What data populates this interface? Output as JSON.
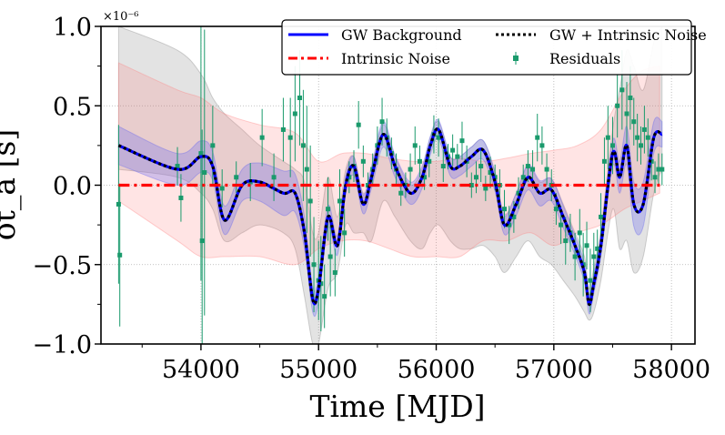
{
  "chart_data": {
    "type": "line",
    "xlabel": "Time [MJD]",
    "ylabel": "δt_a [s]",
    "xlim": [
      53150,
      58200
    ],
    "ylim": [
      -1.0,
      1.0
    ],
    "y_exponent": "×10⁻⁶",
    "x_ticks": [
      54000,
      55000,
      56000,
      57000,
      58000
    ],
    "x_tick_labels": [
      "54000",
      "55000",
      "56000",
      "57000",
      "58000"
    ],
    "y_ticks": [
      -1.0,
      -0.5,
      0.0,
      0.5,
      1.0
    ],
    "y_tick_labels": [
      "−1.0",
      "−0.5",
      "0.0",
      "0.5",
      "1.0"
    ],
    "grid": true,
    "legend_position": "top-right",
    "legend": {
      "gw_background": "GW Background",
      "gw_plus_noise": "GW + Intrinsic Noise",
      "intrinsic_noise": "Intrinsic Noise",
      "residuals": "Residuals"
    },
    "colors": {
      "gw_background": "#0000ff",
      "gw_plus_noise": "#000000",
      "intrinsic_noise": "#ff0000",
      "residuals": "#1a9a6c",
      "band_gw": "#6a6af0",
      "band_total": "#808080",
      "band_noise": "#ff7a7a"
    },
    "gw_curve": {
      "x": [
        53300,
        53800,
        54000,
        54100,
        54200,
        54350,
        54500,
        54700,
        54800,
        54880,
        54950,
        55000,
        55080,
        55160,
        55230,
        55300,
        55380,
        55450,
        55550,
        55650,
        55780,
        55880,
        55950,
        56020,
        56120,
        56200,
        56300,
        56400,
        56500,
        56580,
        56680,
        56780,
        56880,
        56980,
        57080,
        57180,
        57260,
        57300,
        57340,
        57400,
        57500,
        57560,
        57620,
        57680,
        57760,
        57850,
        57920
      ],
      "y": [
        0.25,
        0.1,
        0.18,
        0.12,
        -0.22,
        0.0,
        0.02,
        -0.05,
        -0.05,
        -0.3,
        -0.72,
        -0.65,
        -0.2,
        -0.38,
        0.0,
        0.12,
        -0.12,
        0.05,
        0.32,
        0.12,
        -0.05,
        0.05,
        0.25,
        0.35,
        0.12,
        0.12,
        0.18,
        0.22,
        0.02,
        -0.25,
        -0.12,
        0.05,
        -0.05,
        -0.03,
        -0.2,
        -0.38,
        -0.55,
        -0.75,
        -0.62,
        -0.38,
        0.2,
        0.05,
        0.25,
        -0.12,
        -0.12,
        0.3,
        0.32
      ]
    },
    "gw_band_halfwidth": [
      0.12,
      0.1,
      0.1,
      0.09,
      0.09,
      0.1,
      0.12,
      0.14,
      0.12,
      0.1,
      0.08,
      0.08,
      0.07,
      0.06,
      0.06,
      0.06,
      0.06,
      0.07,
      0.08,
      0.07,
      0.07,
      0.07,
      0.06,
      0.06,
      0.06,
      0.06,
      0.06,
      0.06,
      0.06,
      0.06,
      0.07,
      0.08,
      0.08,
      0.07,
      0.07,
      0.06,
      0.06,
      0.06,
      0.06,
      0.07,
      0.08,
      0.1,
      0.12,
      0.14,
      0.14,
      0.1,
      0.08
    ],
    "total_band": {
      "x": [
        53300,
        53800,
        54000,
        54100,
        54200,
        54350,
        54500,
        54700,
        54800,
        54880,
        54950,
        55000,
        55080,
        55160,
        55230,
        55300,
        55380,
        55450,
        55550,
        55650,
        55780,
        55880,
        55950,
        56020,
        56120,
        56200,
        56300,
        56400,
        56500,
        56580,
        56680,
        56780,
        56880,
        56980,
        57080,
        57180,
        57260,
        57300,
        57340,
        57400,
        57500,
        57560,
        57620,
        57680,
        57760,
        57850,
        57920
      ],
      "upper": [
        1.0,
        0.85,
        0.7,
        0.55,
        0.45,
        0.35,
        0.25,
        0.15,
        0.1,
        0.02,
        -0.3,
        -0.3,
        0.05,
        -0.2,
        0.1,
        0.18,
        -0.05,
        0.1,
        0.38,
        0.18,
        0.0,
        0.1,
        0.3,
        0.4,
        0.18,
        0.18,
        0.24,
        0.28,
        0.08,
        -0.18,
        -0.05,
        0.12,
        0.02,
        0.04,
        -0.12,
        -0.3,
        -0.45,
        -0.65,
        -0.52,
        -0.28,
        0.35,
        0.6,
        0.85,
        0.75,
        0.6,
        0.9,
        1.0
      ],
      "lower": [
        0.1,
        0.05,
        -0.05,
        -0.15,
        -0.35,
        -0.3,
        -0.25,
        -0.3,
        -0.4,
        -0.7,
        -1.0,
        -1.0,
        -0.65,
        -0.55,
        -0.25,
        -0.3,
        -0.3,
        -0.35,
        -0.1,
        -0.2,
        -0.35,
        -0.4,
        -0.3,
        -0.25,
        -0.35,
        -0.4,
        -0.4,
        -0.38,
        -0.45,
        -0.55,
        -0.45,
        -0.35,
        -0.45,
        -0.5,
        -0.6,
        -0.7,
        -0.8,
        -0.85,
        -0.8,
        -0.6,
        -0.15,
        -0.4,
        -0.35,
        -0.55,
        -0.45,
        -0.05,
        0.1
      ]
    },
    "noise_band": {
      "x": [
        53300,
        53800,
        54000,
        54200,
        54500,
        54800,
        55000,
        55200,
        55400,
        55600,
        55800,
        56000,
        56200,
        56400,
        56600,
        56800,
        57000,
        57200,
        57400,
        57600,
        57750,
        57900
      ],
      "upper": [
        0.77,
        0.6,
        0.55,
        0.45,
        0.38,
        0.33,
        0.15,
        0.2,
        0.2,
        0.17,
        0.15,
        0.15,
        0.17,
        0.15,
        0.17,
        0.2,
        0.22,
        0.25,
        0.35,
        0.6,
        0.72,
        0.75
      ],
      "lower": [
        -0.1,
        -0.35,
        -0.45,
        -0.45,
        -0.45,
        -0.5,
        -0.4,
        -0.35,
        -0.35,
        -0.4,
        -0.45,
        -0.45,
        -0.45,
        -0.35,
        -0.35,
        -0.3,
        -0.38,
        -0.3,
        -0.25,
        -0.15,
        -0.1,
        -0.05
      ]
    },
    "intrinsic_noise": {
      "x": [
        53300,
        57920
      ],
      "y": [
        0.0,
        0.0
      ]
    },
    "residuals": {
      "x": [
        53300,
        53310,
        53800,
        53830,
        54000,
        54010,
        54030,
        54100,
        54180,
        54300,
        54420,
        54520,
        54620,
        54700,
        54760,
        54800,
        54840,
        54870,
        54900,
        54930,
        54960,
        55000,
        55020,
        55050,
        55080,
        55100,
        55140,
        55180,
        55220,
        55260,
        55300,
        55340,
        55380,
        55420,
        55460,
        55500,
        55540,
        55580,
        55620,
        55660,
        55700,
        55740,
        55780,
        55820,
        55860,
        55900,
        55940,
        55980,
        56020,
        56060,
        56100,
        56140,
        56180,
        56220,
        56260,
        56300,
        56340,
        56380,
        56420,
        56460,
        56500,
        56540,
        56580,
        56620,
        56660,
        56700,
        56740,
        56780,
        56820,
        56860,
        56900,
        56940,
        56980,
        57020,
        57060,
        57100,
        57140,
        57180,
        57220,
        57250,
        57280,
        57310,
        57340,
        57370,
        57400,
        57430,
        57460,
        57500,
        57540,
        57580,
        57620,
        57650,
        57680,
        57710,
        57740,
        57770,
        57800,
        57830,
        57860,
        57890,
        57920
      ],
      "y": [
        -0.12,
        -0.44,
        0.12,
        -0.08,
        0.2,
        -0.35,
        0.08,
        0.25,
        -0.02,
        0.05,
        0.02,
        0.3,
        0.05,
        0.35,
        0.3,
        0.45,
        0.55,
        0.25,
        0.1,
        -0.1,
        -0.5,
        -0.6,
        -0.62,
        -0.7,
        -0.15,
        -0.45,
        -0.55,
        -0.1,
        -0.3,
        0.05,
        0.12,
        0.38,
        0.15,
        0.0,
        0.1,
        0.25,
        0.4,
        0.3,
        0.2,
        0.1,
        -0.05,
        0.0,
        0.1,
        0.25,
        0.15,
        0.05,
        0.15,
        0.32,
        0.3,
        0.12,
        0.18,
        0.22,
        0.18,
        0.28,
        0.15,
        0.0,
        0.05,
        0.12,
        -0.02,
        0.08,
        0.05,
        0.0,
        -0.15,
        -0.25,
        -0.2,
        -0.05,
        0.05,
        0.12,
        0.1,
        0.3,
        0.25,
        0.1,
        0.0,
        -0.15,
        -0.25,
        -0.35,
        -0.3,
        -0.45,
        -0.3,
        -0.5,
        -0.38,
        -0.6,
        -0.45,
        -0.4,
        -0.2,
        0.15,
        0.3,
        0.25,
        0.5,
        0.6,
        0.45,
        0.55,
        0.4,
        0.3,
        0.25,
        0.35,
        0.3,
        0.15,
        0.05,
        0.1,
        0.1
      ],
      "err": [
        0.5,
        0.45,
        0.12,
        0.15,
        0.8,
        0.7,
        0.9,
        0.25,
        0.12,
        0.1,
        0.12,
        0.18,
        0.15,
        0.2,
        0.25,
        0.3,
        0.3,
        0.35,
        0.4,
        0.35,
        0.3,
        0.25,
        0.3,
        0.2,
        0.2,
        0.25,
        0.15,
        0.2,
        0.15,
        0.1,
        0.1,
        0.15,
        0.1,
        0.08,
        0.1,
        0.12,
        0.15,
        0.12,
        0.1,
        0.1,
        0.08,
        0.08,
        0.1,
        0.12,
        0.1,
        0.08,
        0.1,
        0.12,
        0.12,
        0.1,
        0.08,
        0.1,
        0.08,
        0.12,
        0.1,
        0.08,
        0.1,
        0.1,
        0.08,
        0.1,
        0.08,
        0.1,
        0.12,
        0.12,
        0.1,
        0.1,
        0.08,
        0.1,
        0.12,
        0.15,
        0.12,
        0.1,
        0.1,
        0.1,
        0.12,
        0.15,
        0.12,
        0.15,
        0.15,
        0.2,
        0.15,
        0.2,
        0.15,
        0.12,
        0.15,
        0.15,
        0.2,
        0.18,
        0.2,
        0.25,
        0.2,
        0.2,
        0.15,
        0.15,
        0.12,
        0.15,
        0.12,
        0.12,
        0.1,
        0.1,
        0.1
      ]
    }
  }
}
